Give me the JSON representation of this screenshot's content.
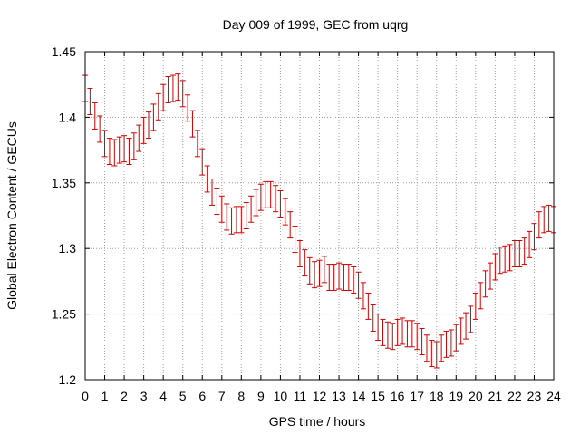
{
  "chart_data": {
    "type": "line",
    "title": "Day 009 of 1999, GEC from uqrg",
    "xlabel": "GPS time / hours",
    "ylabel": "Global Electron Content / GECUs",
    "xlim": [
      0,
      24
    ],
    "ylim": [
      1.2,
      1.45
    ],
    "xticks": [
      0,
      1,
      2,
      3,
      4,
      5,
      6,
      7,
      8,
      9,
      10,
      11,
      12,
      13,
      14,
      15,
      16,
      17,
      18,
      19,
      20,
      21,
      22,
      23,
      24
    ],
    "yticks": [
      1.2,
      1.25,
      1.3,
      1.35,
      1.4,
      1.45
    ],
    "ytick_labels": [
      "1.2",
      "1.25",
      "1.3",
      "1.35",
      "1.4",
      "1.45"
    ],
    "grid": true,
    "error_half_width": 0.01,
    "series": [
      {
        "name": "GEC",
        "color": "#cc0000",
        "x": [
          0,
          0.25,
          0.5,
          0.75,
          1,
          1.25,
          1.5,
          1.75,
          2,
          2.25,
          2.5,
          2.75,
          3,
          3.25,
          3.5,
          3.75,
          4,
          4.25,
          4.5,
          4.75,
          5,
          5.25,
          5.5,
          5.75,
          6,
          6.25,
          6.5,
          6.75,
          7,
          7.25,
          7.5,
          7.75,
          8,
          8.25,
          8.5,
          8.75,
          9,
          9.25,
          9.5,
          9.75,
          10,
          10.25,
          10.5,
          10.75,
          11,
          11.25,
          11.5,
          11.75,
          12,
          12.25,
          12.5,
          12.75,
          13,
          13.25,
          13.5,
          13.75,
          14,
          14.25,
          14.5,
          14.75,
          15,
          15.25,
          15.5,
          15.75,
          16,
          16.25,
          16.5,
          16.75,
          17,
          17.25,
          17.5,
          17.75,
          18,
          18.25,
          18.5,
          18.75,
          19,
          19.25,
          19.5,
          19.75,
          20,
          20.25,
          20.5,
          20.75,
          21,
          21.25,
          21.5,
          21.75,
          22,
          22.25,
          22.5,
          22.75,
          23,
          23.25,
          23.5,
          23.75,
          24
        ],
        "y": [
          1.422,
          1.412,
          1.401,
          1.391,
          1.38,
          1.374,
          1.373,
          1.375,
          1.376,
          1.374,
          1.378,
          1.384,
          1.39,
          1.394,
          1.4,
          1.408,
          1.415,
          1.421,
          1.422,
          1.423,
          1.418,
          1.407,
          1.395,
          1.38,
          1.366,
          1.353,
          1.343,
          1.336,
          1.33,
          1.324,
          1.321,
          1.322,
          1.322,
          1.325,
          1.33,
          1.335,
          1.339,
          1.341,
          1.341,
          1.338,
          1.334,
          1.328,
          1.318,
          1.307,
          1.296,
          1.289,
          1.283,
          1.28,
          1.281,
          1.284,
          1.278,
          1.278,
          1.279,
          1.278,
          1.278,
          1.276,
          1.272,
          1.264,
          1.256,
          1.247,
          1.24,
          1.236,
          1.234,
          1.233,
          1.236,
          1.237,
          1.235,
          1.235,
          1.233,
          1.229,
          1.224,
          1.22,
          1.219,
          1.224,
          1.227,
          1.228,
          1.232,
          1.237,
          1.241,
          1.246,
          1.256,
          1.264,
          1.273,
          1.279,
          1.286,
          1.291,
          1.292,
          1.293,
          1.296,
          1.296,
          1.298,
          1.303,
          1.309,
          1.318,
          1.322,
          1.323,
          1.322
        ]
      }
    ]
  }
}
